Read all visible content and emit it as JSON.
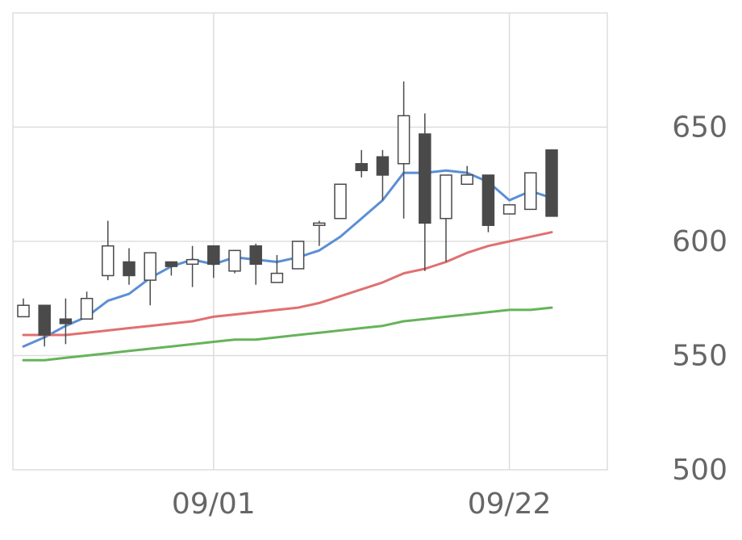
{
  "chart_data": {
    "type": "candlestick",
    "title": "",
    "xlabel": "",
    "ylabel": "",
    "ylim": [
      500,
      700
    ],
    "y_ticks": [
      500,
      550,
      600,
      650
    ],
    "x_ticks": [
      {
        "index": 9,
        "label": "09/01"
      },
      {
        "index": 23,
        "label": "09/22"
      }
    ],
    "grid": true,
    "candles": [
      {
        "open": 567,
        "high": 575,
        "low": 567,
        "close": 572
      },
      {
        "open": 572,
        "high": 572,
        "low": 554,
        "close": 559
      },
      {
        "open": 566,
        "high": 575,
        "low": 555,
        "close": 564
      },
      {
        "open": 566,
        "high": 578,
        "low": 566,
        "close": 575
      },
      {
        "open": 585,
        "high": 609,
        "low": 583,
        "close": 598
      },
      {
        "open": 591,
        "high": 597,
        "low": 581,
        "close": 585
      },
      {
        "open": 583,
        "high": 595,
        "low": 572,
        "close": 595
      },
      {
        "open": 591,
        "high": 591,
        "low": 585,
        "close": 589
      },
      {
        "open": 590,
        "high": 598,
        "low": 580,
        "close": 592
      },
      {
        "open": 598,
        "high": 598,
        "low": 584,
        "close": 590
      },
      {
        "open": 587,
        "high": 596,
        "low": 586,
        "close": 596
      },
      {
        "open": 598,
        "high": 599,
        "low": 581,
        "close": 590
      },
      {
        "open": 582,
        "high": 594,
        "low": 582,
        "close": 586
      },
      {
        "open": 588,
        "high": 600,
        "low": 588,
        "close": 600
      },
      {
        "open": 607,
        "high": 609,
        "low": 598,
        "close": 608
      },
      {
        "open": 610,
        "high": 625,
        "low": 610,
        "close": 625
      },
      {
        "open": 634,
        "high": 640,
        "low": 628,
        "close": 631
      },
      {
        "open": 637,
        "high": 640,
        "low": 618,
        "close": 629
      },
      {
        "open": 634,
        "high": 670,
        "low": 610,
        "close": 655
      },
      {
        "open": 647,
        "high": 656,
        "low": 587,
        "close": 608
      },
      {
        "open": 610,
        "high": 629,
        "low": 591,
        "close": 629
      },
      {
        "open": 625,
        "high": 633,
        "low": 625,
        "close": 629
      },
      {
        "open": 629,
        "high": 629,
        "low": 604,
        "close": 607
      },
      {
        "open": 612,
        "high": 616,
        "low": 612,
        "close": 616
      },
      {
        "open": 614,
        "high": 630,
        "low": 614,
        "close": 630
      },
      {
        "open": 640,
        "high": 640,
        "low": 611,
        "close": 611
      }
    ],
    "series": [
      {
        "color": "#5b8fd4",
        "values": [
          554,
          558,
          563,
          567,
          574,
          577,
          584,
          589,
          592,
          590,
          593,
          592,
          591,
          593,
          596,
          602,
          610,
          618,
          630,
          630,
          631,
          630,
          626,
          618,
          622,
          619
        ]
      },
      {
        "color": "#e07070",
        "values": [
          559,
          559,
          559,
          560,
          561,
          562,
          563,
          564,
          565,
          567,
          568,
          569,
          570,
          571,
          573,
          576,
          579,
          582,
          586,
          588,
          591,
          595,
          598,
          600,
          602,
          604
        ]
      },
      {
        "color": "#66b35a",
        "values": [
          548,
          548,
          549,
          550,
          551,
          552,
          553,
          554,
          555,
          556,
          557,
          557,
          558,
          559,
          560,
          561,
          562,
          563,
          565,
          566,
          567,
          568,
          569,
          570,
          570,
          571
        ]
      }
    ],
    "colors": {
      "bull_fill": "#ffffff",
      "bear_fill": "#4a4a4a",
      "candle_stroke": "#4a4a4a",
      "grid": "#dddddd",
      "tick_text": "#666666"
    }
  }
}
